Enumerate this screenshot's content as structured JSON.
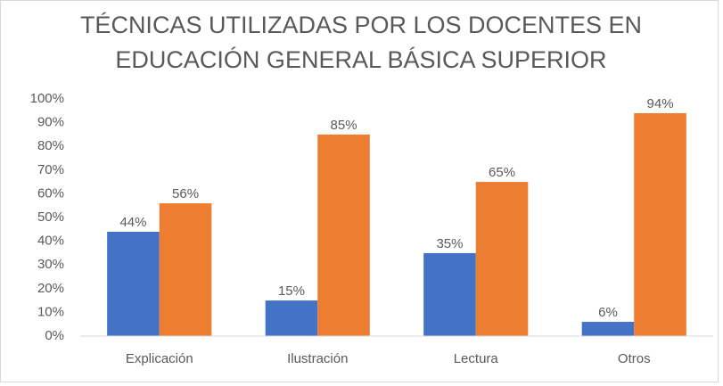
{
  "chart_data": {
    "type": "bar",
    "title": [
      "TÉCNICAS UTILIZADAS POR LOS DOCENTES EN",
      "EDUCACIÓN GENERAL BÁSICA SUPERIOR"
    ],
    "categories": [
      "Explicación",
      "Ilustración",
      "Lectura",
      "Otros"
    ],
    "series": [
      {
        "color": "#4472c4",
        "values": [
          44,
          15,
          35,
          6
        ],
        "value_labels": [
          "44%",
          "15%",
          "35%",
          "6%"
        ]
      },
      {
        "color": "#ed7d31",
        "values": [
          56,
          85,
          65,
          94
        ],
        "value_labels": [
          "56%",
          "85%",
          "65%",
          "94%"
        ]
      }
    ],
    "ylim": [
      0,
      100
    ],
    "yticks": [
      {
        "value": 0,
        "label": "0%"
      },
      {
        "value": 10,
        "label": "10%"
      },
      {
        "value": 20,
        "label": "20%"
      },
      {
        "value": 30,
        "label": "30%"
      },
      {
        "value": 40,
        "label": "40%"
      },
      {
        "value": 50,
        "label": "50%"
      },
      {
        "value": 60,
        "label": "60%"
      },
      {
        "value": 70,
        "label": "70%"
      },
      {
        "value": 80,
        "label": "80%"
      },
      {
        "value": 90,
        "label": "90%"
      },
      {
        "value": 100,
        "label": "100%"
      }
    ],
    "grid": false
  }
}
